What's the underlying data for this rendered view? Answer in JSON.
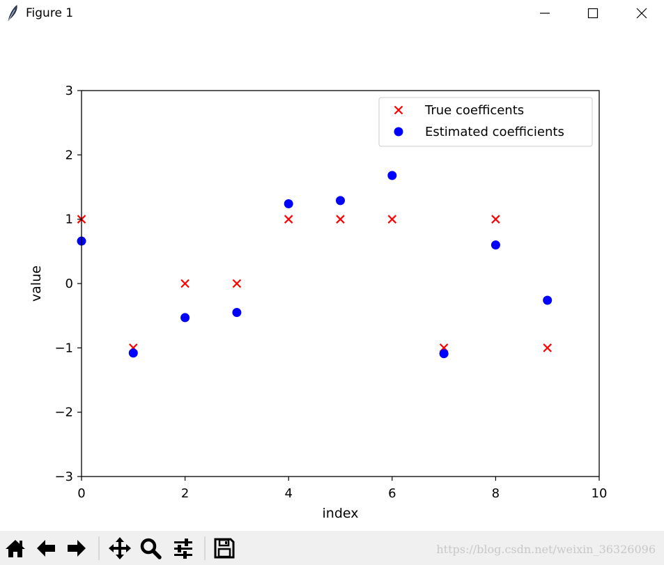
{
  "window": {
    "title": "Figure 1",
    "icons": {
      "app": "feather-icon",
      "minimize": "minimize-icon",
      "maximize": "maximize-icon",
      "close": "close-icon"
    }
  },
  "toolbar": {
    "buttons": [
      {
        "name": "home-button",
        "icon": "home-icon"
      },
      {
        "name": "back-button",
        "icon": "arrow-left-icon"
      },
      {
        "name": "forward-button",
        "icon": "arrow-right-icon"
      },
      {
        "name": "pan-button",
        "icon": "move-icon"
      },
      {
        "name": "zoom-button",
        "icon": "magnifier-icon"
      },
      {
        "name": "configure-subplots-button",
        "icon": "sliders-icon"
      },
      {
        "name": "save-button",
        "icon": "floppy-disk-icon"
      }
    ],
    "watermark": "https://blog.csdn.net/weixin_36326096"
  },
  "chart_data": {
    "type": "scatter",
    "title": "",
    "xlabel": "index",
    "ylabel": "value",
    "xlim": [
      0,
      10
    ],
    "ylim": [
      -3,
      3
    ],
    "xticks": [
      "0",
      "2",
      "4",
      "6",
      "8",
      "10"
    ],
    "xtick_values": [
      0,
      2,
      4,
      6,
      8,
      10
    ],
    "yticks": [
      "−3",
      "−2",
      "−1",
      "0",
      "1",
      "2",
      "3"
    ],
    "ytick_values": [
      -3,
      -2,
      -1,
      0,
      1,
      2,
      3
    ],
    "grid": false,
    "legend_position": "top-right",
    "series": [
      {
        "name": "True coefficents",
        "marker": "x",
        "color": "#ff0000",
        "x": [
          0,
          1,
          2,
          3,
          4,
          5,
          6,
          7,
          8,
          9
        ],
        "y": [
          1,
          -1,
          0,
          0,
          1,
          1,
          1,
          -1,
          1,
          -1
        ]
      },
      {
        "name": "Estimated coefficients",
        "marker": "o",
        "color": "#0000ff",
        "x": [
          0,
          1,
          2,
          3,
          4,
          5,
          6,
          7,
          8,
          9
        ],
        "y": [
          0.66,
          -1.08,
          -0.53,
          -0.45,
          1.24,
          1.29,
          1.68,
          -1.09,
          0.6,
          -0.26
        ]
      }
    ]
  }
}
